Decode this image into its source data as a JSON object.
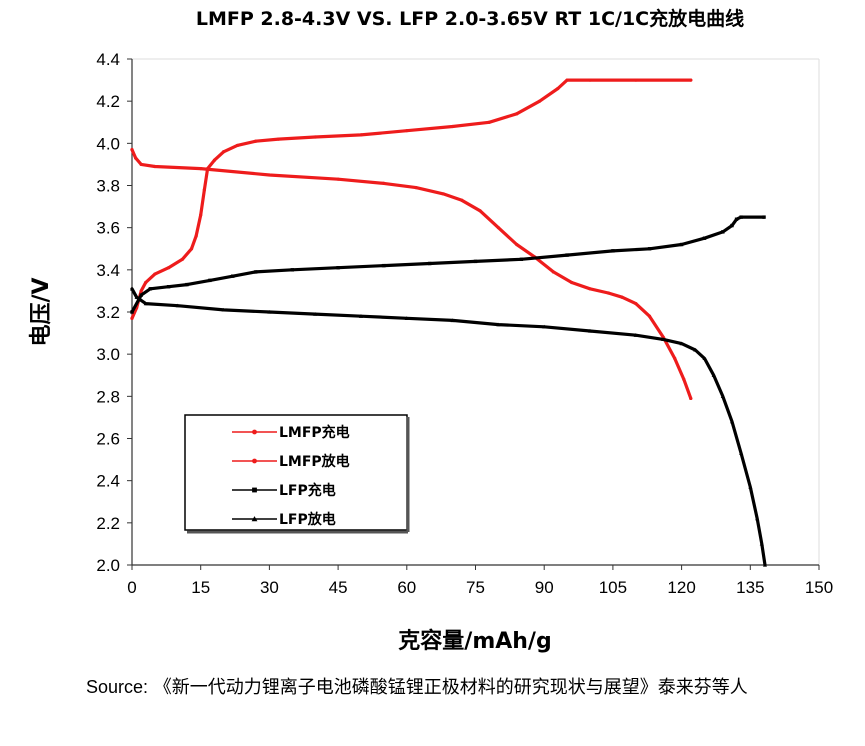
{
  "source": {
    "label": "Source:",
    "text": "《新一代动力锂离子电池磷酸锰锂正极材料的研究现状与展望》泰来芬等人"
  },
  "chart_data": {
    "type": "line",
    "title": "LMFP 2.8-4.3V VS. LFP 2.0-3.65V RT 1C/1C充放电曲线",
    "xlabel": "克容量/mAh/g",
    "ylabel": "电压/V",
    "xlim": [
      0,
      150
    ],
    "ylim": [
      2.0,
      4.4
    ],
    "xticks": [
      0,
      15,
      30,
      45,
      60,
      75,
      90,
      105,
      120,
      135,
      150
    ],
    "yticks": [
      2.0,
      2.2,
      2.4,
      2.6,
      2.8,
      3.0,
      3.2,
      3.4,
      3.6,
      3.8,
      4.0,
      4.2,
      4.4
    ],
    "grid": false,
    "legend_position": "bottom-left",
    "series": [
      {
        "name": "LMFP充电",
        "color": "#ee1c1c",
        "marker": "dot",
        "points": [
          [
            0,
            3.17
          ],
          [
            1,
            3.22
          ],
          [
            2,
            3.3
          ],
          [
            3,
            3.34
          ],
          [
            5,
            3.38
          ],
          [
            8,
            3.41
          ],
          [
            11,
            3.45
          ],
          [
            13,
            3.5
          ],
          [
            14,
            3.56
          ],
          [
            15,
            3.66
          ],
          [
            15.8,
            3.78
          ],
          [
            16.5,
            3.88
          ],
          [
            18,
            3.92
          ],
          [
            20,
            3.96
          ],
          [
            23,
            3.99
          ],
          [
            27,
            4.01
          ],
          [
            32,
            4.02
          ],
          [
            40,
            4.03
          ],
          [
            50,
            4.04
          ],
          [
            60,
            4.06
          ],
          [
            70,
            4.08
          ],
          [
            78,
            4.1
          ],
          [
            84,
            4.14
          ],
          [
            89,
            4.2
          ],
          [
            93,
            4.26
          ],
          [
            95,
            4.3
          ],
          [
            100,
            4.3
          ],
          [
            110,
            4.3
          ],
          [
            122,
            4.3
          ]
        ]
      },
      {
        "name": "LMFP放电",
        "color": "#ee1c1c",
        "marker": "dot",
        "points": [
          [
            0,
            3.97
          ],
          [
            0.8,
            3.93
          ],
          [
            2,
            3.9
          ],
          [
            5,
            3.89
          ],
          [
            15,
            3.88
          ],
          [
            30,
            3.85
          ],
          [
            45,
            3.83
          ],
          [
            55,
            3.81
          ],
          [
            62,
            3.79
          ],
          [
            68,
            3.76
          ],
          [
            72,
            3.73
          ],
          [
            76,
            3.68
          ],
          [
            80,
            3.6
          ],
          [
            84,
            3.52
          ],
          [
            88,
            3.46
          ],
          [
            92,
            3.39
          ],
          [
            96,
            3.34
          ],
          [
            100,
            3.31
          ],
          [
            104,
            3.29
          ],
          [
            107,
            3.27
          ],
          [
            110,
            3.24
          ],
          [
            113,
            3.18
          ],
          [
            116,
            3.08
          ],
          [
            118.5,
            2.98
          ],
          [
            120.5,
            2.88
          ],
          [
            122,
            2.79
          ]
        ]
      },
      {
        "name": "LFP充电",
        "color": "#000000",
        "marker": "square",
        "points": [
          [
            0,
            3.2
          ],
          [
            2,
            3.28
          ],
          [
            4,
            3.31
          ],
          [
            8,
            3.32
          ],
          [
            12,
            3.33
          ],
          [
            17,
            3.35
          ],
          [
            22,
            3.37
          ],
          [
            27,
            3.39
          ],
          [
            35,
            3.4
          ],
          [
            45,
            3.41
          ],
          [
            55,
            3.42
          ],
          [
            65,
            3.43
          ],
          [
            75,
            3.44
          ],
          [
            85,
            3.45
          ],
          [
            95,
            3.47
          ],
          [
            105,
            3.49
          ],
          [
            113,
            3.5
          ],
          [
            120,
            3.52
          ],
          [
            125,
            3.55
          ],
          [
            129,
            3.58
          ],
          [
            131,
            3.61
          ],
          [
            132,
            3.64
          ],
          [
            133,
            3.65
          ],
          [
            138,
            3.65
          ]
        ]
      },
      {
        "name": "LFP放电",
        "color": "#000000",
        "marker": "triangle",
        "points": [
          [
            0,
            3.31
          ],
          [
            1,
            3.27
          ],
          [
            3,
            3.24
          ],
          [
            10,
            3.23
          ],
          [
            20,
            3.21
          ],
          [
            30,
            3.2
          ],
          [
            40,
            3.19
          ],
          [
            50,
            3.18
          ],
          [
            60,
            3.17
          ],
          [
            70,
            3.16
          ],
          [
            80,
            3.14
          ],
          [
            90,
            3.13
          ],
          [
            100,
            3.11
          ],
          [
            110,
            3.09
          ],
          [
            116,
            3.07
          ],
          [
            120,
            3.05
          ],
          [
            123,
            3.02
          ],
          [
            125,
            2.98
          ],
          [
            127,
            2.9
          ],
          [
            129,
            2.8
          ],
          [
            131,
            2.68
          ],
          [
            133,
            2.53
          ],
          [
            135,
            2.37
          ],
          [
            136.5,
            2.22
          ],
          [
            137.5,
            2.1
          ],
          [
            138.2,
            2.0
          ]
        ]
      }
    ]
  }
}
